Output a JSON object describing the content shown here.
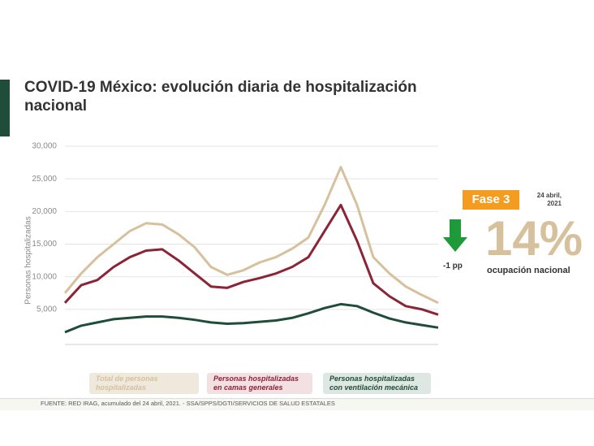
{
  "chart_data": {
    "type": "line",
    "title": "COVID-19 México: evolución diaria de hospitalización nacional",
    "y_label": "Personas hospitalizadas",
    "ylim": [
      0,
      30000
    ],
    "yticks": [
      {
        "value": 5000,
        "label": "5,000"
      },
      {
        "value": 10000,
        "label": "10,000"
      },
      {
        "value": 15000,
        "label": "15,000"
      },
      {
        "value": 20000,
        "label": "20,000"
      },
      {
        "value": 25000,
        "label": "25,000"
      },
      {
        "value": 30000,
        "label": "30,000"
      }
    ],
    "grid": true,
    "series": [
      {
        "name": "Total de personas hospitalizadas",
        "color": "#d6c19c",
        "values": [
          7500,
          10500,
          13000,
          15000,
          17000,
          18200,
          18000,
          16500,
          14500,
          11500,
          10300,
          11000,
          12200,
          13000,
          14300,
          16000,
          21000,
          26800,
          21000,
          13000,
          10500,
          8500,
          7200,
          6000
        ]
      },
      {
        "name": "Personas hospitalizadas en camas generales",
        "color": "#8c2437",
        "values": [
          6000,
          8700,
          9500,
          11500,
          13000,
          14000,
          14200,
          12500,
          10500,
          8500,
          8300,
          9200,
          9800,
          10500,
          11500,
          13000,
          17000,
          21000,
          15500,
          9000,
          7000,
          5500,
          5000,
          4200
        ]
      },
      {
        "name": "Personas hospitalizadas con ventilación mecánica",
        "color": "#1f4d3a",
        "values": [
          1500,
          2500,
          3000,
          3500,
          3700,
          3900,
          3900,
          3700,
          3400,
          3000,
          2800,
          2900,
          3100,
          3300,
          3700,
          4400,
          5200,
          5800,
          5500,
          4500,
          3600,
          3000,
          2600,
          2200
        ]
      }
    ]
  },
  "panel": {
    "phase": "Fase 3",
    "date": "24 abril, 2021",
    "change": "-1 pp",
    "occupancy": "14%",
    "occupancy_label": "ocupación nacional"
  },
  "footer": {
    "source": "FUENTE: RED IRAG, acumulado del 24 abril, 2021. -  SSA/SPPS/DGTI/SERVICIOS DE SALUD ESTATALES"
  }
}
